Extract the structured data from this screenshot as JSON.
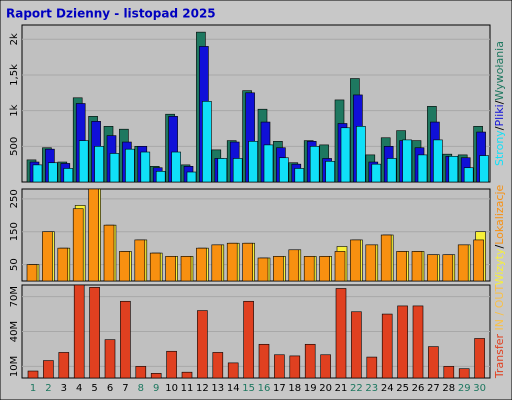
{
  "title": "Raport Dzienny -  listopad 2025",
  "chart_data": [
    {
      "type": "bar",
      "legend_separator": "/",
      "ylim": [
        0,
        2200
      ],
      "yticks": [
        {
          "value": 500,
          "label": "500"
        },
        {
          "value": 1000,
          "label": "1k"
        },
        {
          "value": 1500,
          "label": "1,5k"
        },
        {
          "value": 2000,
          "label": "2k"
        }
      ],
      "series": [
        {
          "name": "Wywołania",
          "color": "#1e7860",
          "values": [
            310,
            480,
            280,
            1180,
            920,
            780,
            740,
            500,
            220,
            950,
            240,
            2100,
            450,
            580,
            1280,
            1020,
            570,
            270,
            580,
            520,
            1150,
            1450,
            380,
            620,
            720,
            580,
            1060,
            390,
            380,
            780
          ]
        },
        {
          "name": "Pliki",
          "color": "#1010d8",
          "values": [
            280,
            460,
            260,
            1100,
            850,
            650,
            560,
            500,
            200,
            920,
            220,
            1900,
            330,
            560,
            1250,
            840,
            480,
            250,
            570,
            330,
            820,
            1220,
            280,
            500,
            580,
            480,
            840,
            360,
            340,
            700
          ]
        },
        {
          "name": "Strony",
          "color": "#10e0f8",
          "values": [
            240,
            270,
            190,
            580,
            500,
            400,
            460,
            420,
            150,
            420,
            140,
            1130,
            330,
            330,
            570,
            520,
            340,
            190,
            500,
            290,
            760,
            780,
            250,
            330,
            590,
            380,
            590,
            360,
            200,
            370
          ]
        }
      ]
    },
    {
      "type": "bar",
      "legend_separator": "/",
      "ylim": [
        0,
        280
      ],
      "yticks": [
        50,
        150,
        250
      ],
      "series": [
        {
          "name": "Wizyty",
          "color": "#f8f038",
          "values": [
            50,
            150,
            100,
            230,
            280,
            170,
            90,
            125,
            85,
            75,
            75,
            100,
            110,
            115,
            115,
            70,
            75,
            95,
            75,
            75,
            105,
            125,
            110,
            140,
            90,
            90,
            80,
            80,
            110,
            150
          ]
        },
        {
          "name": "Lokalizacje",
          "color": "#f89010",
          "values": [
            50,
            150,
            100,
            220,
            280,
            170,
            90,
            125,
            85,
            75,
            75,
            100,
            110,
            115,
            115,
            70,
            75,
            95,
            75,
            75,
            90,
            125,
            110,
            140,
            90,
            90,
            80,
            80,
            110,
            125
          ]
        }
      ]
    },
    {
      "type": "bar",
      "ylim": [
        0,
        80
      ],
      "yticks": [
        {
          "value": 10,
          "label": "10M"
        },
        {
          "value": 40,
          "label": "40M"
        },
        {
          "value": 70,
          "label": "70M"
        }
      ],
      "legend_suffix": "IN / OUT",
      "legend_suffix_color": "#f8c048",
      "categories": [
        "1",
        "2",
        "3",
        "4",
        "5",
        "6",
        "7",
        "8",
        "9",
        "10",
        "11",
        "12",
        "13",
        "14",
        "15",
        "16",
        "17",
        "18",
        "19",
        "20",
        "21",
        "22",
        "23",
        "24",
        "25",
        "26",
        "27",
        "28",
        "29",
        "30"
      ],
      "category_colors": [
        "#1e7860",
        "#1e7860",
        "#000000",
        "#000000",
        "#000000",
        "#000000",
        "#000000",
        "#1e7860",
        "#1e7860",
        "#000000",
        "#000000",
        "#000000",
        "#000000",
        "#000000",
        "#1e7860",
        "#1e7860",
        "#000000",
        "#000000",
        "#000000",
        "#000000",
        "#000000",
        "#1e7860",
        "#1e7860",
        "#000000",
        "#000000",
        "#000000",
        "#000000",
        "#000000",
        "#1e7860",
        "#1e7860"
      ],
      "series": [
        {
          "name": "Transfer",
          "color": "#e04020",
          "values": [
            6,
            15,
            22,
            80,
            78,
            33,
            66,
            10,
            4,
            23,
            5,
            58,
            22,
            13,
            66,
            29,
            20,
            19,
            29,
            20,
            77,
            57,
            18,
            55,
            62,
            62,
            27,
            10,
            8,
            34
          ]
        }
      ]
    }
  ]
}
